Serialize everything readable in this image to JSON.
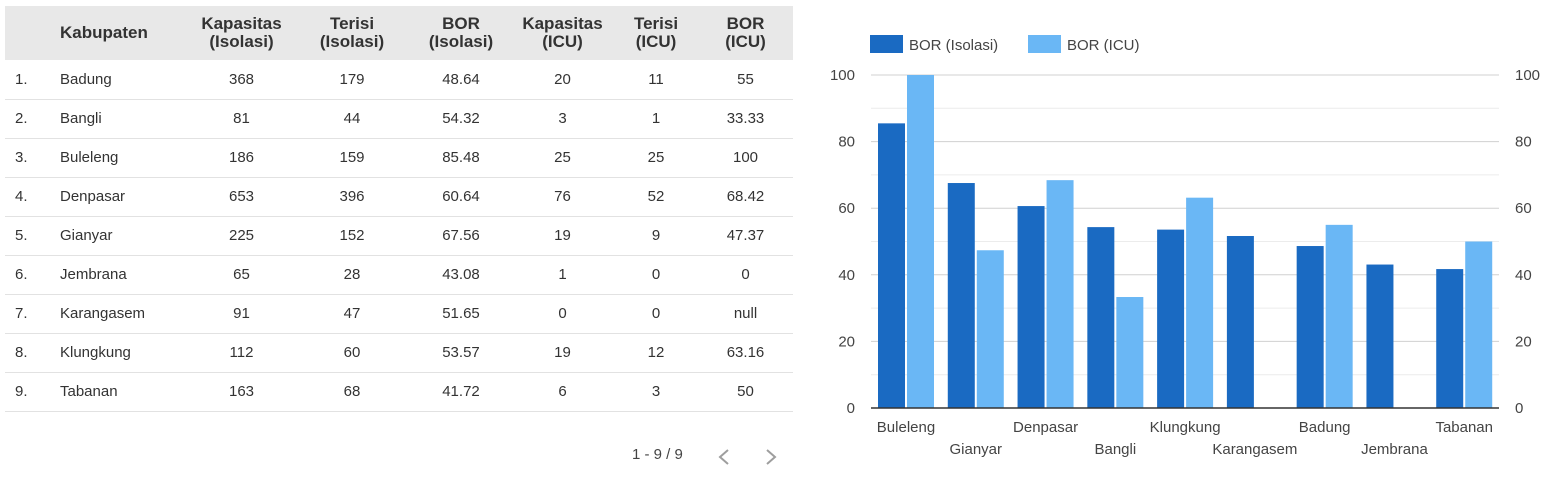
{
  "table": {
    "headers": {
      "name": "Kabupaten",
      "kap_iso": [
        "Kapasitas",
        "(Isolasi)"
      ],
      "ter_iso": [
        "Terisi",
        "(Isolasi)"
      ],
      "bor_iso": [
        "BOR",
        "(Isolasi)"
      ],
      "kap_icu": [
        "Kapasitas",
        "(ICU)"
      ],
      "ter_icu": [
        "Terisi",
        "(ICU)"
      ],
      "bor_icu": [
        "BOR",
        "(ICU)"
      ]
    },
    "rows": [
      {
        "no": "1.",
        "name": "Badung",
        "kap_iso": "368",
        "ter_iso": "179",
        "bor_iso": "48.64",
        "kap_icu": "20",
        "ter_icu": "11",
        "bor_icu": "55"
      },
      {
        "no": "2.",
        "name": "Bangli",
        "kap_iso": "81",
        "ter_iso": "44",
        "bor_iso": "54.32",
        "kap_icu": "3",
        "ter_icu": "1",
        "bor_icu": "33.33"
      },
      {
        "no": "3.",
        "name": "Buleleng",
        "kap_iso": "186",
        "ter_iso": "159",
        "bor_iso": "85.48",
        "kap_icu": "25",
        "ter_icu": "25",
        "bor_icu": "100"
      },
      {
        "no": "4.",
        "name": "Denpasar",
        "kap_iso": "653",
        "ter_iso": "396",
        "bor_iso": "60.64",
        "kap_icu": "76",
        "ter_icu": "52",
        "bor_icu": "68.42"
      },
      {
        "no": "5.",
        "name": "Gianyar",
        "kap_iso": "225",
        "ter_iso": "152",
        "bor_iso": "67.56",
        "kap_icu": "19",
        "ter_icu": "9",
        "bor_icu": "47.37"
      },
      {
        "no": "6.",
        "name": "Jembrana",
        "kap_iso": "65",
        "ter_iso": "28",
        "bor_iso": "43.08",
        "kap_icu": "1",
        "ter_icu": "0",
        "bor_icu": "0"
      },
      {
        "no": "7.",
        "name": "Karangasem",
        "kap_iso": "91",
        "ter_iso": "47",
        "bor_iso": "51.65",
        "kap_icu": "0",
        "ter_icu": "0",
        "bor_icu": "null"
      },
      {
        "no": "8.",
        "name": "Klungkung",
        "kap_iso": "112",
        "ter_iso": "60",
        "bor_iso": "53.57",
        "kap_icu": "19",
        "ter_icu": "12",
        "bor_icu": "63.16"
      },
      {
        "no": "9.",
        "name": "Tabanan",
        "kap_iso": "163",
        "ter_iso": "68",
        "bor_iso": "41.72",
        "kap_icu": "6",
        "ter_icu": "3",
        "bor_icu": "50"
      }
    ]
  },
  "pagination": {
    "label": "1 - 9 / 9"
  },
  "icons": {
    "prev": "chevron-left-icon",
    "next": "chevron-right-icon"
  },
  "chart_data": {
    "type": "bar",
    "categories": [
      "Buleleng",
      "Gianyar",
      "Denpasar",
      "Bangli",
      "Klungkung",
      "Karangasem",
      "Badung",
      "Jembrana",
      "Tabanan"
    ],
    "series": [
      {
        "name": "BOR (Isolasi)",
        "color": "#1a6ac2",
        "values": [
          85.48,
          67.56,
          60.64,
          54.32,
          53.57,
          51.65,
          48.64,
          43.08,
          41.72
        ]
      },
      {
        "name": "BOR (ICU)",
        "color": "#6ab7f5",
        "values": [
          100,
          47.37,
          68.42,
          33.33,
          63.16,
          null,
          55,
          0,
          50
        ]
      }
    ],
    "ylim": [
      0,
      100
    ],
    "yticks": [
      0,
      20,
      40,
      60,
      80,
      100
    ],
    "y_axis_sides": "left and right",
    "grid": true,
    "legend_position": "top-left"
  }
}
